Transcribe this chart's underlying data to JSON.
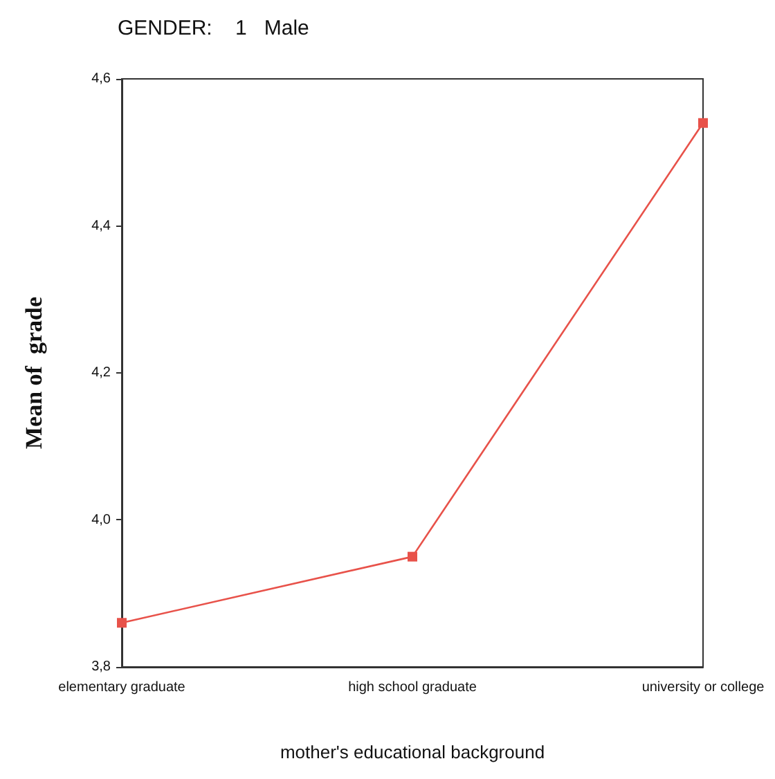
{
  "chart_data": {
    "type": "line",
    "title": "GENDER:    1   Male",
    "xlabel": "mother's educational background",
    "ylabel": "Mean of  grade",
    "categories": [
      "elementary graduate",
      "high school graduate",
      "university or college"
    ],
    "series": [
      {
        "color": "#e8524a",
        "values": [
          3.86,
          3.95,
          4.54
        ]
      }
    ],
    "ylim": [
      3.8,
      4.6
    ],
    "yticks": [
      {
        "value": 3.8,
        "label": "3,8"
      },
      {
        "value": 4.0,
        "label": "4,0"
      },
      {
        "value": 4.2,
        "label": "4,2"
      },
      {
        "value": 4.4,
        "label": "4,4"
      },
      {
        "value": 4.6,
        "label": "4,6"
      }
    ],
    "grid": false,
    "legend": false,
    "marker": "square",
    "line_style": "solid"
  }
}
